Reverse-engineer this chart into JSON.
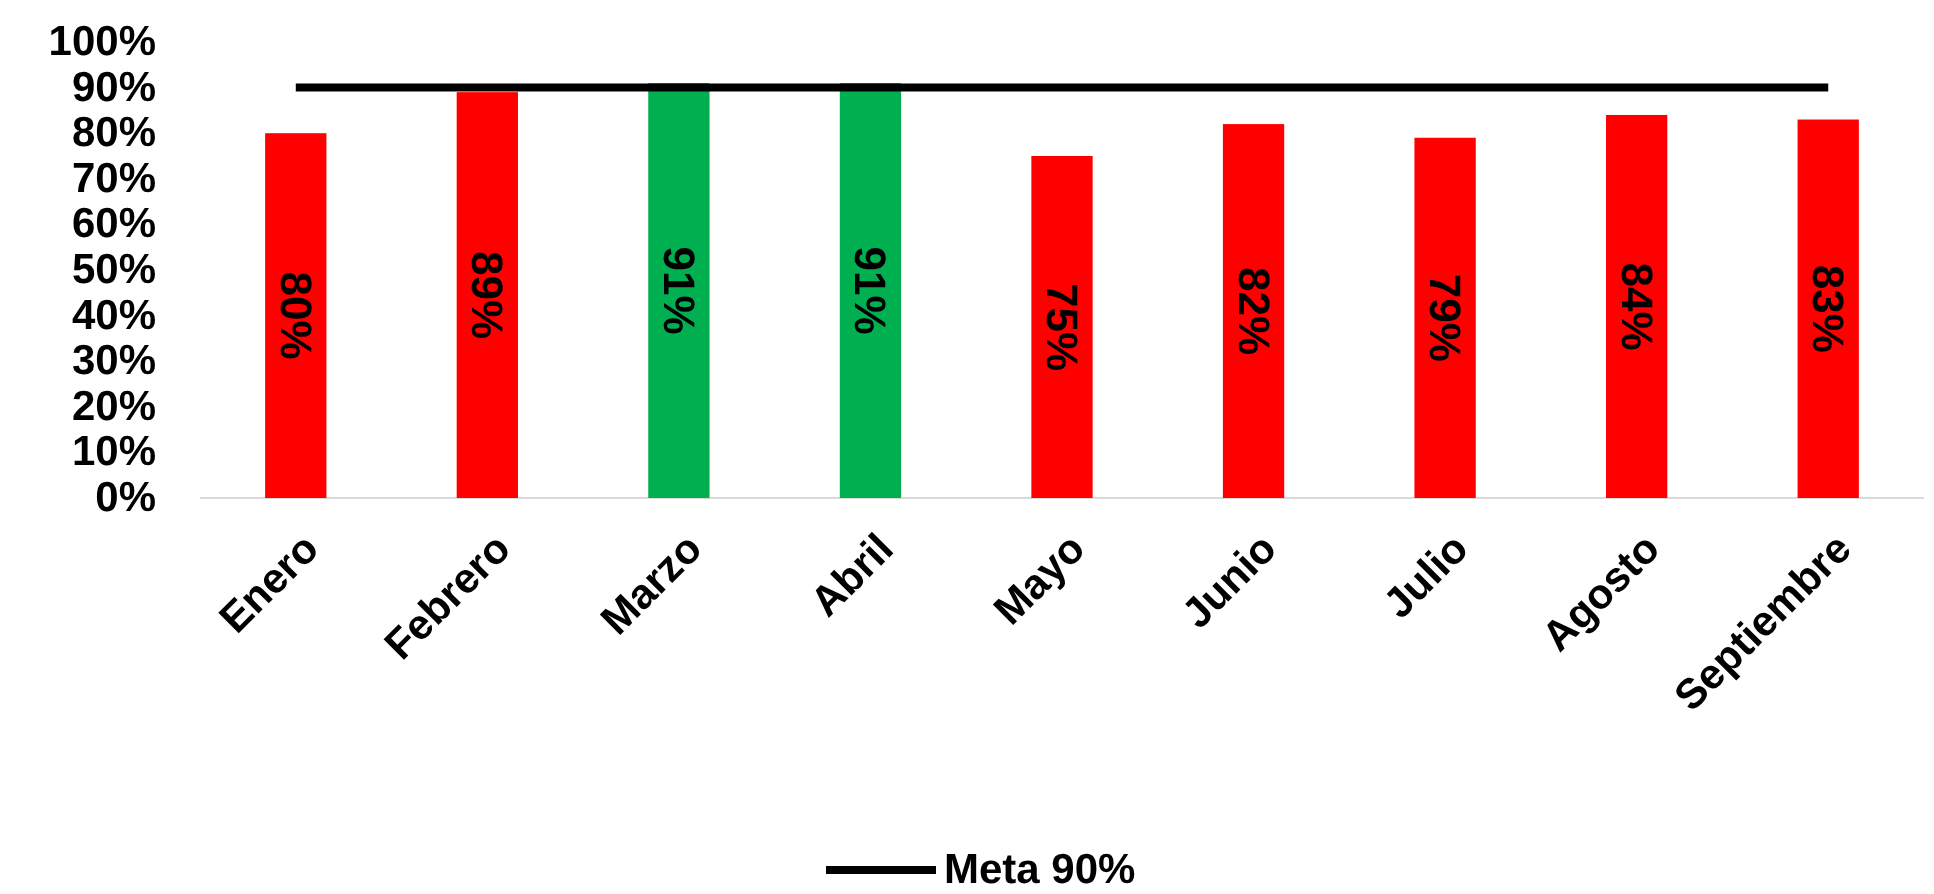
{
  "chart_data": {
    "type": "bar",
    "categories": [
      "Enero",
      "Febrero",
      "Marzo",
      "Abril",
      "Mayo",
      "Junio",
      "Julio",
      "Agosto",
      "Septiembre"
    ],
    "series": [
      {
        "values": [
          80,
          89,
          91,
          91,
          75,
          82,
          79,
          84,
          83
        ],
        "colors": [
          "#ff0000",
          "#ff0000",
          "#00b050",
          "#00b050",
          "#ff0000",
          "#ff0000",
          "#ff0000",
          "#ff0000",
          "#ff0000"
        ],
        "value_labels": [
          "80%",
          "89%",
          "91%",
          "91%",
          "75%",
          "82%",
          "79%",
          "84%",
          "83%"
        ]
      },
      {
        "type": "line",
        "name": "Meta 90%",
        "color": "#000000",
        "values": [
          90,
          90,
          90,
          90,
          90,
          90,
          90,
          90,
          90
        ]
      }
    ],
    "ylim": [
      0,
      100
    ],
    "yticks": [
      {
        "value": 0,
        "label": "0%"
      },
      {
        "value": 10,
        "label": "10%"
      },
      {
        "value": 20,
        "label": "20%"
      },
      {
        "value": 30,
        "label": "30%"
      },
      {
        "value": 40,
        "label": "40%"
      },
      {
        "value": 50,
        "label": "50%"
      },
      {
        "value": 60,
        "label": "60%"
      },
      {
        "value": 70,
        "label": "70%"
      },
      {
        "value": 80,
        "label": "80%"
      },
      {
        "value": 90,
        "label": "90%"
      },
      {
        "value": 100,
        "label": "100%"
      }
    ],
    "grid": false,
    "legend": "bottom",
    "marker": "none",
    "line_style": "solid"
  }
}
